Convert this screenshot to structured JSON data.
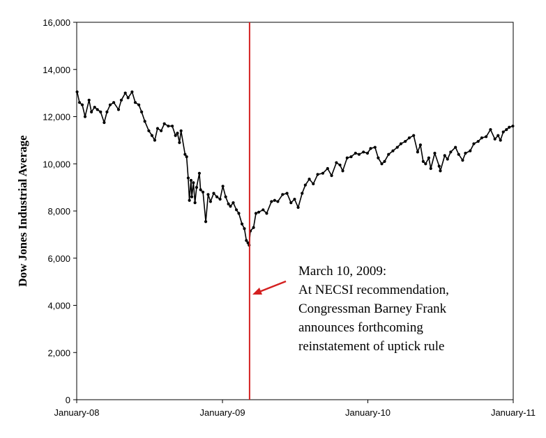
{
  "chart_data": {
    "type": "line",
    "title": "",
    "xlabel": "",
    "ylabel": "Dow Jones Industrial Average",
    "x_range": [
      "2008-01-01",
      "2011-01-01"
    ],
    "ylim": [
      0,
      16000
    ],
    "y_ticks": [
      0,
      2000,
      4000,
      6000,
      8000,
      10000,
      12000,
      14000,
      16000
    ],
    "y_tick_labels": [
      "0",
      "2,000",
      "4,000",
      "6,000",
      "8,000",
      "10,000",
      "12,000",
      "14,000",
      "16,000"
    ],
    "x_ticks": [
      "2008-01-01",
      "2009-01-01",
      "2010-01-01",
      "2011-01-01"
    ],
    "x_tick_labels": [
      "January-08",
      "January-09",
      "January-10",
      "January-11"
    ],
    "grid": false,
    "series": [
      {
        "color": "#000000",
        "points": [
          [
            "2008-01-02",
            13050
          ],
          [
            "2008-01-08",
            12600
          ],
          [
            "2008-01-15",
            12500
          ],
          [
            "2008-01-22",
            12000
          ],
          [
            "2008-02-01",
            12700
          ],
          [
            "2008-02-07",
            12200
          ],
          [
            "2008-02-15",
            12400
          ],
          [
            "2008-02-22",
            12300
          ],
          [
            "2008-03-01",
            12200
          ],
          [
            "2008-03-10",
            11750
          ],
          [
            "2008-03-17",
            12200
          ],
          [
            "2008-03-25",
            12500
          ],
          [
            "2008-04-03",
            12600
          ],
          [
            "2008-04-15",
            12300
          ],
          [
            "2008-04-22",
            12700
          ],
          [
            "2008-05-02",
            13000
          ],
          [
            "2008-05-09",
            12800
          ],
          [
            "2008-05-19",
            13050
          ],
          [
            "2008-05-27",
            12600
          ],
          [
            "2008-06-05",
            12500
          ],
          [
            "2008-06-12",
            12200
          ],
          [
            "2008-06-20",
            11800
          ],
          [
            "2008-06-30",
            11400
          ],
          [
            "2008-07-08",
            11200
          ],
          [
            "2008-07-15",
            11000
          ],
          [
            "2008-07-22",
            11500
          ],
          [
            "2008-07-31",
            11400
          ],
          [
            "2008-08-08",
            11700
          ],
          [
            "2008-08-18",
            11600
          ],
          [
            "2008-08-28",
            11600
          ],
          [
            "2008-09-05",
            11200
          ],
          [
            "2008-09-10",
            11300
          ],
          [
            "2008-09-15",
            10900
          ],
          [
            "2008-09-19",
            11400
          ],
          [
            "2008-09-29",
            10400
          ],
          [
            "2008-10-03",
            10300
          ],
          [
            "2008-10-07",
            9400
          ],
          [
            "2008-10-10",
            8450
          ],
          [
            "2008-10-14",
            9300
          ],
          [
            "2008-10-16",
            8600
          ],
          [
            "2008-10-20",
            9200
          ],
          [
            "2008-10-24",
            8350
          ],
          [
            "2008-10-28",
            9000
          ],
          [
            "2008-11-04",
            9600
          ],
          [
            "2008-11-07",
            8900
          ],
          [
            "2008-11-13",
            8800
          ],
          [
            "2008-11-20",
            7550
          ],
          [
            "2008-11-26",
            8700
          ],
          [
            "2008-12-02",
            8400
          ],
          [
            "2008-12-10",
            8750
          ],
          [
            "2008-12-18",
            8600
          ],
          [
            "2008-12-26",
            8500
          ],
          [
            "2009-01-02",
            9050
          ],
          [
            "2009-01-09",
            8600
          ],
          [
            "2009-01-16",
            8300
          ],
          [
            "2009-01-21",
            8200
          ],
          [
            "2009-01-28",
            8350
          ],
          [
            "2009-02-05",
            8050
          ],
          [
            "2009-02-11",
            7900
          ],
          [
            "2009-02-19",
            7450
          ],
          [
            "2009-02-25",
            7250
          ],
          [
            "2009-03-02",
            6750
          ],
          [
            "2009-03-06",
            6650
          ],
          [
            "2009-03-09",
            6550
          ],
          [
            "2009-03-12",
            7150
          ],
          [
            "2009-03-20",
            7300
          ],
          [
            "2009-03-26",
            7900
          ],
          [
            "2009-04-02",
            7950
          ],
          [
            "2009-04-13",
            8050
          ],
          [
            "2009-04-22",
            7900
          ],
          [
            "2009-05-04",
            8400
          ],
          [
            "2009-05-12",
            8450
          ],
          [
            "2009-05-20",
            8400
          ],
          [
            "2009-06-01",
            8700
          ],
          [
            "2009-06-12",
            8750
          ],
          [
            "2009-06-22",
            8350
          ],
          [
            "2009-07-01",
            8500
          ],
          [
            "2009-07-10",
            8150
          ],
          [
            "2009-07-20",
            8750
          ],
          [
            "2009-07-28",
            9100
          ],
          [
            "2009-08-07",
            9350
          ],
          [
            "2009-08-17",
            9150
          ],
          [
            "2009-08-28",
            9550
          ],
          [
            "2009-09-10",
            9600
          ],
          [
            "2009-09-22",
            9800
          ],
          [
            "2009-10-02",
            9500
          ],
          [
            "2009-10-14",
            10050
          ],
          [
            "2009-10-23",
            9950
          ],
          [
            "2009-10-30",
            9700
          ],
          [
            "2009-11-10",
            10250
          ],
          [
            "2009-11-20",
            10300
          ],
          [
            "2009-12-01",
            10450
          ],
          [
            "2009-12-10",
            10400
          ],
          [
            "2009-12-21",
            10500
          ],
          [
            "2009-12-31",
            10450
          ],
          [
            "2010-01-08",
            10650
          ],
          [
            "2010-01-19",
            10700
          ],
          [
            "2010-01-27",
            10250
          ],
          [
            "2010-02-05",
            10000
          ],
          [
            "2010-02-12",
            10100
          ],
          [
            "2010-02-22",
            10400
          ],
          [
            "2010-03-05",
            10550
          ],
          [
            "2010-03-16",
            10700
          ],
          [
            "2010-03-25",
            10850
          ],
          [
            "2010-04-05",
            10950
          ],
          [
            "2010-04-15",
            11100
          ],
          [
            "2010-04-26",
            11200
          ],
          [
            "2010-05-06",
            10500
          ],
          [
            "2010-05-13",
            10800
          ],
          [
            "2010-05-20",
            10100
          ],
          [
            "2010-05-26",
            10000
          ],
          [
            "2010-06-03",
            10250
          ],
          [
            "2010-06-08",
            9800
          ],
          [
            "2010-06-18",
            10450
          ],
          [
            "2010-06-29",
            9900
          ],
          [
            "2010-07-02",
            9700
          ],
          [
            "2010-07-13",
            10350
          ],
          [
            "2010-07-20",
            10200
          ],
          [
            "2010-07-28",
            10500
          ],
          [
            "2010-08-09",
            10700
          ],
          [
            "2010-08-17",
            10400
          ],
          [
            "2010-08-27",
            10150
          ],
          [
            "2010-09-03",
            10450
          ],
          [
            "2010-09-15",
            10550
          ],
          [
            "2010-09-24",
            10850
          ],
          [
            "2010-10-05",
            10950
          ],
          [
            "2010-10-14",
            11100
          ],
          [
            "2010-10-25",
            11150
          ],
          [
            "2010-11-05",
            11450
          ],
          [
            "2010-11-16",
            11050
          ],
          [
            "2010-11-24",
            11200
          ],
          [
            "2010-11-30",
            11000
          ],
          [
            "2010-12-07",
            11350
          ],
          [
            "2010-12-15",
            11450
          ],
          [
            "2010-12-22",
            11550
          ],
          [
            "2010-12-31",
            11600
          ]
        ]
      }
    ],
    "annotation": {
      "date": "2009-03-10",
      "line_color": "#d42020",
      "lines": [
        "March 10, 2009:",
        "At NECSI recommendation,",
        "Congressman Barney Frank",
        "announces forthcoming",
        "reinstatement of uptick rule"
      ]
    }
  }
}
